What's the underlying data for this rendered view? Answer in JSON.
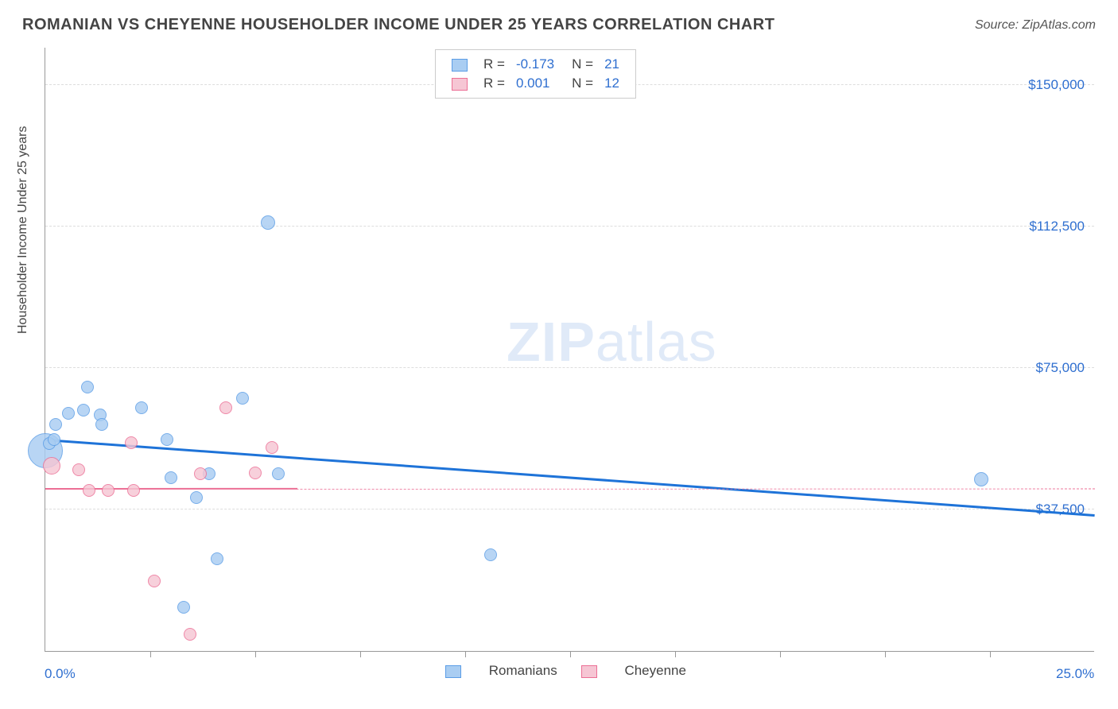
{
  "title": "ROMANIAN VS CHEYENNE HOUSEHOLDER INCOME UNDER 25 YEARS CORRELATION CHART",
  "source_label": "Source: ",
  "source_name": "ZipAtlas.com",
  "ylabel": "Householder Income Under 25 years",
  "watermark_bold": "ZIP",
  "watermark_light": "atlas",
  "chart": {
    "type": "scatter-correlation",
    "background_color": "#ffffff",
    "grid_color": "#dddddd",
    "axis_color": "#999999",
    "xlim": [
      0.0,
      25.0
    ],
    "ylim": [
      0,
      160000
    ],
    "xlim_labels": [
      "0.0%",
      "25.0%"
    ],
    "ytick_values": [
      37500,
      75000,
      112500,
      150000
    ],
    "ytick_labels": [
      "$37,500",
      "$75,000",
      "$112,500",
      "$150,000"
    ],
    "xtick_values": [
      2.5,
      5.0,
      7.5,
      10.0,
      12.5,
      15.0,
      17.5,
      20.0,
      22.5
    ],
    "series": [
      {
        "name": "Romanians",
        "fill": "#a9cdf2",
        "stroke": "#5b9de6",
        "trend_color": "#1e73d8",
        "trend_width": 3,
        "trend_style": "solid",
        "R": "-0.173",
        "N": "21",
        "trend_x": [
          0.0,
          25.0
        ],
        "trend_y": [
          55500,
          35500
        ],
        "points": [
          {
            "x": 0.0,
            "y": 53000,
            "r": 22
          },
          {
            "x": 0.1,
            "y": 55000,
            "r": 8
          },
          {
            "x": 0.2,
            "y": 56000,
            "r": 8
          },
          {
            "x": 0.25,
            "y": 60000,
            "r": 8
          },
          {
            "x": 0.55,
            "y": 63000,
            "r": 8
          },
          {
            "x": 0.9,
            "y": 63800,
            "r": 8
          },
          {
            "x": 1.0,
            "y": 69800,
            "r": 8
          },
          {
            "x": 1.3,
            "y": 62500,
            "r": 8
          },
          {
            "x": 1.35,
            "y": 60000,
            "r": 8
          },
          {
            "x": 2.3,
            "y": 64500,
            "r": 8
          },
          {
            "x": 2.9,
            "y": 56000,
            "r": 8
          },
          {
            "x": 3.0,
            "y": 46000,
            "r": 8
          },
          {
            "x": 3.3,
            "y": 11500,
            "r": 8
          },
          {
            "x": 3.6,
            "y": 40700,
            "r": 8
          },
          {
            "x": 3.9,
            "y": 47000,
            "r": 8
          },
          {
            "x": 4.1,
            "y": 24500,
            "r": 8
          },
          {
            "x": 4.7,
            "y": 67000,
            "r": 8
          },
          {
            "x": 5.3,
            "y": 113500,
            "r": 9
          },
          {
            "x": 5.55,
            "y": 47000,
            "r": 8
          },
          {
            "x": 10.6,
            "y": 25500,
            "r": 8
          },
          {
            "x": 22.3,
            "y": 45500,
            "r": 9
          }
        ]
      },
      {
        "name": "Cheyenne",
        "fill": "#f6c6d4",
        "stroke": "#ec6f95",
        "trend_color": "#ec6f95",
        "trend_width": 2.5,
        "trend_style": "solid-then-dashed",
        "trend_split_x": 6.0,
        "R": "0.001",
        "N": "12",
        "trend_x": [
          0.0,
          25.0
        ],
        "trend_y": [
          42700,
          42800
        ],
        "points": [
          {
            "x": 0.15,
            "y": 49000,
            "r": 11
          },
          {
            "x": 0.8,
            "y": 48000,
            "r": 8
          },
          {
            "x": 1.05,
            "y": 42500,
            "r": 8
          },
          {
            "x": 1.5,
            "y": 42500,
            "r": 8
          },
          {
            "x": 2.05,
            "y": 55200,
            "r": 8
          },
          {
            "x": 2.1,
            "y": 42500,
            "r": 8
          },
          {
            "x": 2.6,
            "y": 18500,
            "r": 8
          },
          {
            "x": 3.45,
            "y": 4500,
            "r": 8
          },
          {
            "x": 3.7,
            "y": 47000,
            "r": 8
          },
          {
            "x": 4.3,
            "y": 64500,
            "r": 8
          },
          {
            "x": 5.0,
            "y": 47200,
            "r": 8
          },
          {
            "x": 5.4,
            "y": 53800,
            "r": 8
          }
        ]
      }
    ],
    "legend_top_labels": {
      "R_prefix": "R =",
      "N_prefix": "N ="
    },
    "legend_bottom": [
      "Romanians",
      "Cheyenne"
    ],
    "value_color": "#2f6fd0",
    "label_fontsize": 17
  }
}
